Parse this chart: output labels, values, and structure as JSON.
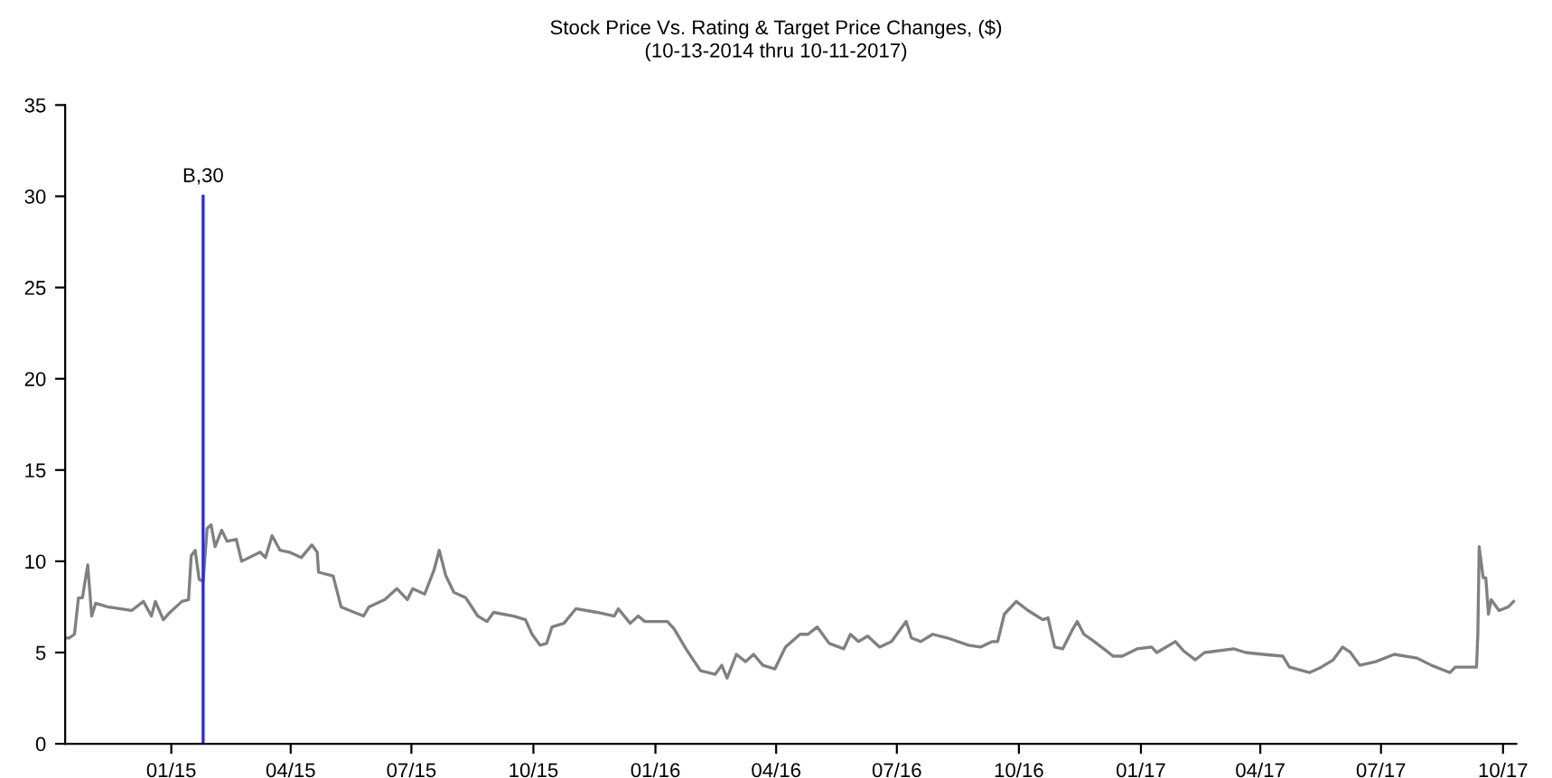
{
  "chart_data": {
    "type": "line",
    "title": "Stock Price Vs. Rating & Target Price Changes, ($)",
    "subtitle": "(10-13-2014 thru 10-11-2017)",
    "xlim": [
      "2014-10-13",
      "2017-10-11"
    ],
    "xticks": [
      {
        "value": "2015-01-01",
        "label": "01/15"
      },
      {
        "value": "2015-04-01",
        "label": "04/15"
      },
      {
        "value": "2015-07-01",
        "label": "07/15"
      },
      {
        "value": "2015-10-01",
        "label": "10/15"
      },
      {
        "value": "2016-01-01",
        "label": "01/16"
      },
      {
        "value": "2016-04-01",
        "label": "04/16"
      },
      {
        "value": "2016-07-01",
        "label": "07/16"
      },
      {
        "value": "2016-10-01",
        "label": "10/16"
      },
      {
        "value": "2017-01-01",
        "label": "01/17"
      },
      {
        "value": "2017-04-01",
        "label": "04/17"
      },
      {
        "value": "2017-07-01",
        "label": "07/17"
      },
      {
        "value": "2017-10-01",
        "label": "10/17"
      }
    ],
    "ylim": [
      0,
      35
    ],
    "yticks": [
      0,
      5,
      10,
      15,
      20,
      25,
      30,
      35
    ],
    "grid": false,
    "legend": false,
    "annotations": [
      {
        "text": "B,30",
        "x": "2015-01-25",
        "y": 30
      }
    ],
    "series": [
      {
        "color": "#808080",
        "x": [
          "2014-10-13",
          "2014-10-16",
          "2014-10-20",
          "2014-10-23",
          "2014-10-26",
          "2014-10-30",
          "2014-11-02",
          "2014-11-05",
          "2014-11-14",
          "2014-12-02",
          "2014-12-11",
          "2014-12-17",
          "2014-12-20",
          "2014-12-26",
          "2014-12-31",
          "2015-01-09",
          "2015-01-14",
          "2015-01-16",
          "2015-01-19",
          "2015-01-22",
          "2015-01-25",
          "2015-01-28",
          "2015-01-31",
          "2015-02-03",
          "2015-02-08",
          "2015-02-12",
          "2015-02-19",
          "2015-02-23",
          "2015-03-09",
          "2015-03-13",
          "2015-03-18",
          "2015-03-24",
          "2015-03-31",
          "2015-04-09",
          "2015-04-17",
          "2015-04-21",
          "2015-04-22",
          "2015-05-03",
          "2015-05-09",
          "2015-05-19",
          "2015-05-26",
          "2015-05-30",
          "2015-06-11",
          "2015-06-20",
          "2015-06-28",
          "2015-07-02",
          "2015-07-11",
          "2015-07-18",
          "2015-07-22",
          "2015-07-27",
          "2015-08-02",
          "2015-08-11",
          "2015-08-20",
          "2015-08-27",
          "2015-09-01",
          "2015-09-16",
          "2015-09-25",
          "2015-09-30",
          "2015-10-06",
          "2015-10-11",
          "2015-10-15",
          "2015-10-24",
          "2015-11-02",
          "2015-11-18",
          "2015-12-01",
          "2015-12-04",
          "2015-12-13",
          "2015-12-19",
          "2015-12-24",
          "2016-01-10",
          "2016-01-15",
          "2016-01-24",
          "2016-02-04",
          "2016-02-15",
          "2016-02-20",
          "2016-02-24",
          "2016-03-02",
          "2016-03-09",
          "2016-03-15",
          "2016-03-22",
          "2016-03-31",
          "2016-04-08",
          "2016-04-19",
          "2016-04-25",
          "2016-05-02",
          "2016-05-11",
          "2016-05-22",
          "2016-05-27",
          "2016-06-02",
          "2016-06-09",
          "2016-06-18",
          "2016-06-27",
          "2016-07-08",
          "2016-07-12",
          "2016-07-19",
          "2016-07-28",
          "2016-08-08",
          "2016-08-24",
          "2016-09-02",
          "2016-09-11",
          "2016-09-15",
          "2016-09-20",
          "2016-09-29",
          "2016-10-08",
          "2016-10-19",
          "2016-10-23",
          "2016-10-28",
          "2016-11-03",
          "2016-11-10",
          "2016-11-14",
          "2016-11-19",
          "2016-11-25",
          "2016-12-04",
          "2016-12-11",
          "2016-12-18",
          "2016-12-29",
          "2017-01-09",
          "2017-01-13",
          "2017-01-27",
          "2017-02-02",
          "2017-02-11",
          "2017-02-18",
          "2017-03-12",
          "2017-03-21",
          "2017-04-03",
          "2017-04-18",
          "2017-04-23",
          "2017-05-08",
          "2017-05-17",
          "2017-05-26",
          "2017-06-02",
          "2017-06-08",
          "2017-06-15",
          "2017-06-27",
          "2017-07-11",
          "2017-07-28",
          "2017-08-08",
          "2017-08-22",
          "2017-08-26",
          "2017-09-11",
          "2017-09-12",
          "2017-09-13",
          "2017-09-16",
          "2017-09-18",
          "2017-09-20",
          "2017-09-22",
          "2017-09-28",
          "2017-10-05",
          "2017-10-09"
        ],
        "values": [
          5.8,
          5.8,
          6.0,
          8.0,
          8.0,
          9.8,
          7.0,
          7.7,
          7.5,
          7.3,
          7.8,
          7.0,
          7.8,
          6.8,
          7.2,
          7.8,
          7.9,
          10.3,
          10.6,
          9.0,
          8.9,
          11.8,
          12.0,
          10.8,
          11.7,
          11.1,
          11.2,
          10.0,
          10.5,
          10.2,
          11.4,
          10.6,
          10.5,
          10.2,
          10.9,
          10.5,
          9.4,
          9.2,
          7.5,
          7.2,
          7.0,
          7.5,
          7.9,
          8.5,
          7.9,
          8.5,
          8.2,
          9.5,
          10.6,
          9.2,
          8.3,
          8.0,
          7.0,
          6.7,
          7.2,
          7.0,
          6.8,
          6.0,
          5.4,
          5.5,
          6.4,
          6.6,
          7.4,
          7.2,
          7.0,
          7.4,
          6.6,
          7.0,
          6.7,
          6.7,
          6.3,
          5.2,
          4.0,
          3.8,
          4.3,
          3.6,
          4.9,
          4.5,
          4.9,
          4.3,
          4.1,
          5.3,
          6.0,
          6.0,
          6.4,
          5.5,
          5.2,
          6.0,
          5.6,
          5.9,
          5.3,
          5.6,
          6.7,
          5.8,
          5.6,
          6.0,
          5.8,
          5.4,
          5.3,
          5.6,
          5.6,
          7.1,
          7.8,
          7.3,
          6.8,
          6.9,
          5.3,
          5.2,
          6.2,
          6.7,
          6.0,
          5.7,
          5.2,
          4.8,
          4.8,
          5.2,
          5.3,
          5.0,
          5.6,
          5.1,
          4.6,
          5.0,
          5.2,
          5.0,
          4.9,
          4.8,
          4.2,
          3.9,
          4.2,
          4.6,
          5.3,
          5.0,
          4.3,
          4.5,
          4.9,
          4.7,
          4.3,
          3.9,
          4.2,
          4.2,
          6.0,
          10.8,
          9.1,
          9.1,
          7.1,
          7.9,
          7.3,
          7.5,
          7.8
        ]
      },
      {
        "type": "line",
        "color": "#2a2af0",
        "x": [
          "2015-01-25",
          "2015-01-25"
        ],
        "values": [
          0,
          30
        ]
      }
    ]
  }
}
